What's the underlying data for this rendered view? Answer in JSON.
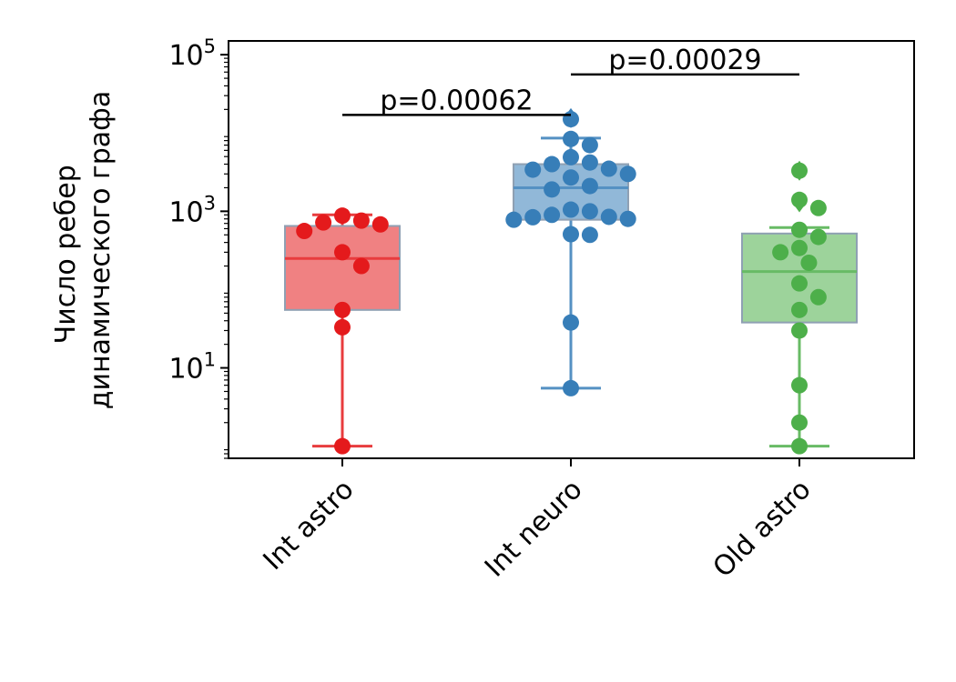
{
  "chart_data": {
    "type": "box",
    "ylabel_lines": [
      "Число ребер",
      "динамического графа"
    ],
    "yscale": "log",
    "ylim": [
      0.7,
      150000
    ],
    "yticks": [
      {
        "value": 10,
        "base": "10",
        "exp": "1"
      },
      {
        "value": 1000,
        "base": "10",
        "exp": "3"
      },
      {
        "value": 100000,
        "base": "10",
        "exp": "5"
      }
    ],
    "categories": [
      "Int astro",
      "Int neuro",
      "Old astro"
    ],
    "colors": {
      "Int astro": "#e41a1c",
      "Int neuro": "#377eb8",
      "Old astro": "#4daf4a"
    },
    "series": [
      {
        "category": "Int astro",
        "box": {
          "whisker_low": 1,
          "q1": 55,
          "median": 250,
          "q3": 650,
          "whisker_high": 900
        },
        "outliers": [],
        "points": [
          1,
          33,
          55,
          200,
          300,
          560,
          680,
          720,
          760,
          880
        ]
      },
      {
        "category": "Int neuro",
        "box": {
          "whisker_low": 5.5,
          "q1": 780,
          "median": 2000,
          "q3": 4000,
          "whisker_high": 8600
        },
        "outliers": [
          15500
        ],
        "points": [
          5.5,
          38,
          500,
          510,
          780,
          800,
          840,
          850,
          900,
          1000,
          1050,
          1900,
          2100,
          2700,
          3000,
          3400,
          3500,
          4000,
          4200,
          4900,
          7000,
          8400,
          15000
        ]
      },
      {
        "category": "Old astro",
        "box": {
          "whisker_low": 1,
          "q1": 38,
          "median": 170,
          "q3": 520,
          "whisker_high": 620
        },
        "outliers": [
          1300,
          3300
        ],
        "points": [
          1,
          2,
          6,
          30,
          55,
          80,
          120,
          220,
          300,
          340,
          470,
          580,
          1100,
          1400,
          3300
        ]
      }
    ],
    "annotations": [
      {
        "text": "p=0.00062",
        "from": "Int astro",
        "to": "Int neuro",
        "y": 17000
      },
      {
        "text": "p=0.00029",
        "from": "Int neuro",
        "to": "Old astro",
        "y": 56000
      }
    ]
  }
}
